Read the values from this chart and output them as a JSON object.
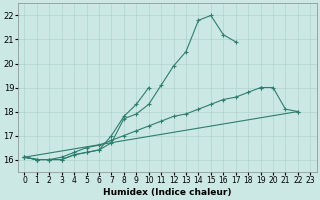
{
  "xlabel": "Humidex (Indice chaleur)",
  "xlim": [
    -0.5,
    23.5
  ],
  "ylim": [
    15.5,
    22.5
  ],
  "yticks": [
    16,
    17,
    18,
    19,
    20,
    21,
    22
  ],
  "xticks": [
    0,
    1,
    2,
    3,
    4,
    5,
    6,
    7,
    8,
    9,
    10,
    11,
    12,
    13,
    14,
    15,
    16,
    17,
    18,
    19,
    20,
    21,
    22,
    23
  ],
  "bg_color": "#cce8e4",
  "grid_color": "#aed4cf",
  "line_color": "#2e7d6e",
  "curves": [
    [
      16.1,
      16.0,
      16.0,
      16.0,
      16.2,
      16.3,
      16.4,
      16.7,
      17.7,
      17.9,
      18.3,
      19.1,
      19.9,
      20.5,
      21.8,
      22.0,
      21.2,
      20.9,
      null,
      null,
      null,
      null,
      null,
      null
    ],
    [
      16.1,
      16.0,
      16.0,
      16.0,
      16.2,
      16.3,
      16.4,
      17.0,
      17.8,
      18.3,
      19.0,
      null,
      null,
      null,
      null,
      null,
      null,
      null,
      null,
      19.0,
      19.0,
      18.1,
      18.0,
      null
    ],
    [
      16.1,
      16.0,
      16.0,
      16.1,
      16.3,
      16.5,
      16.6,
      16.8,
      17.0,
      17.2,
      17.4,
      17.6,
      17.8,
      17.9,
      18.1,
      18.3,
      18.5,
      18.6,
      18.8,
      19.0,
      null,
      null,
      null,
      null
    ],
    [
      16.1,
      16.0,
      null,
      null,
      null,
      null,
      null,
      null,
      null,
      null,
      null,
      null,
      null,
      null,
      null,
      null,
      null,
      null,
      null,
      null,
      null,
      null,
      18.0,
      null
    ]
  ]
}
